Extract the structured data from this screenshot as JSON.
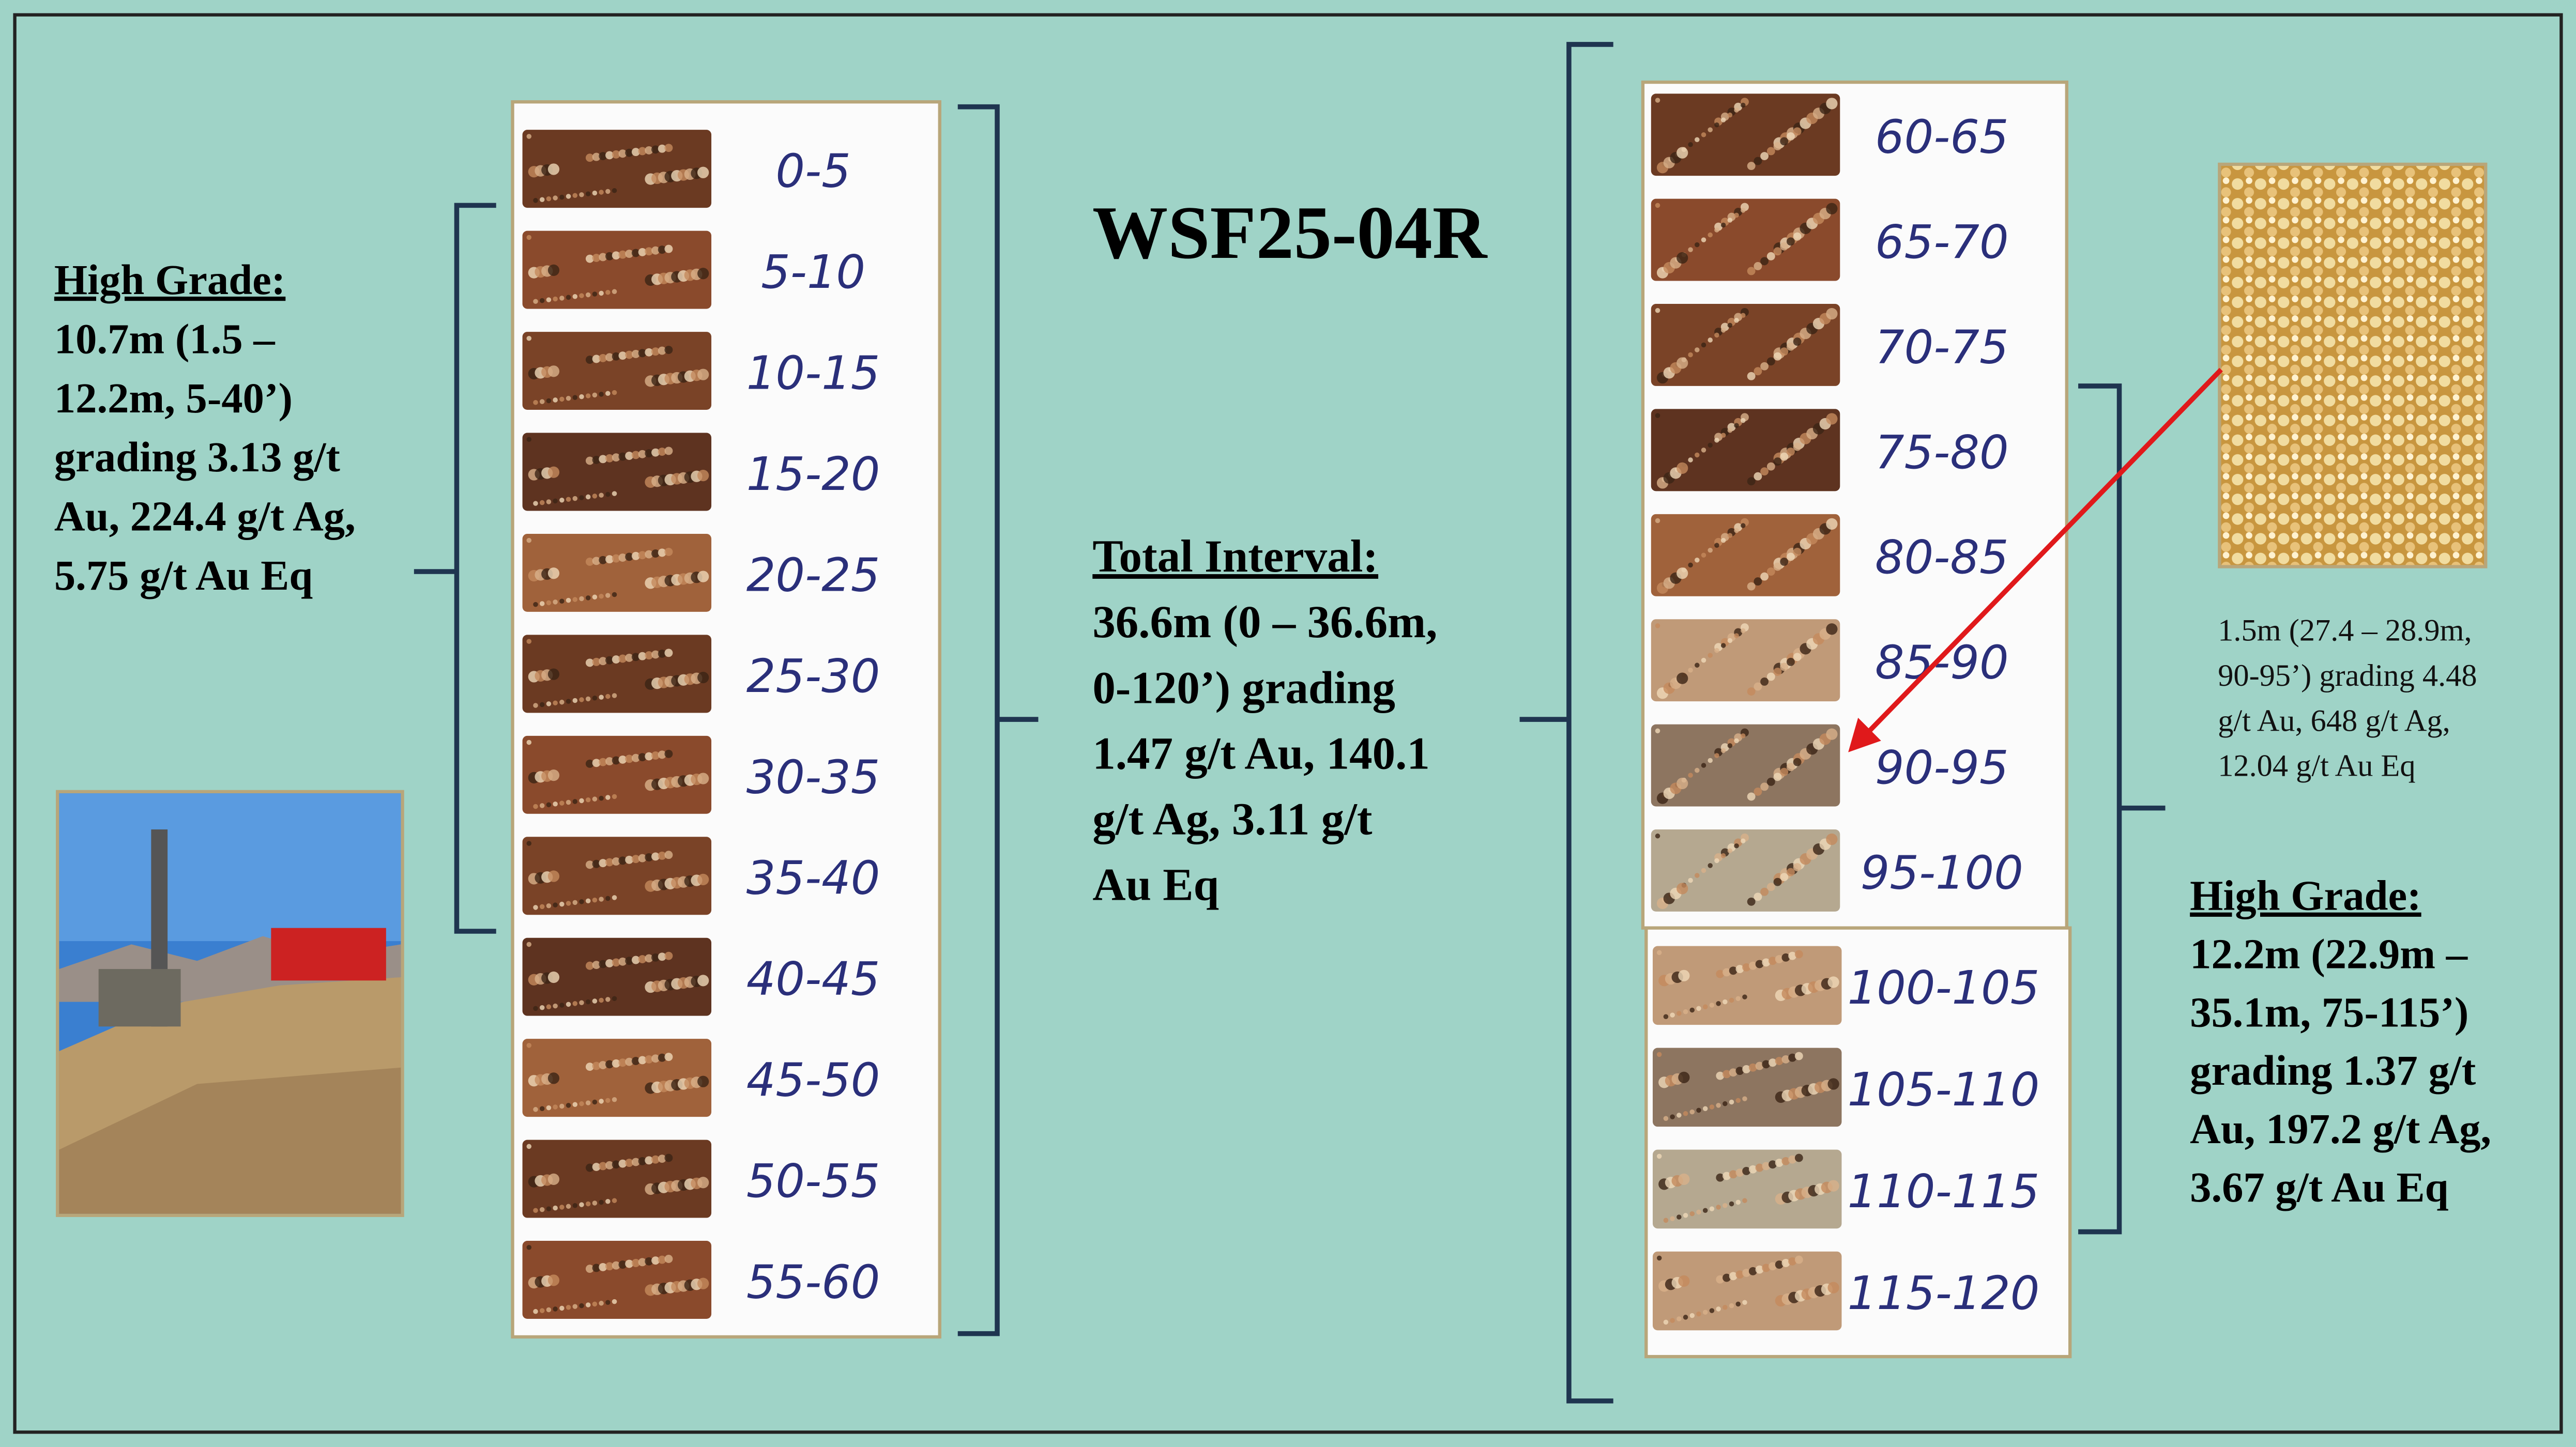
{
  "title": "WSF25-04R",
  "left_callout": {
    "heading": "High Grade:",
    "lines": [
      "10.7m (1.5 –",
      "12.2m, 5-40’)",
      "grading 3.13 g/t",
      "Au, 224.4 g/t Ag,",
      "5.75 g/t Au Eq"
    ]
  },
  "center_callout": {
    "heading": "Total Interval:",
    "lines": [
      "36.6m (0 – 36.6m,",
      "0-120’) grading",
      "1.47 g/t Au, 140.1",
      "g/t Ag, 3.11 g/t",
      "Au Eq"
    ]
  },
  "right_callout": {
    "heading": "High Grade:",
    "lines": [
      "12.2m (22.9m –",
      "35.1m, 75-115’)",
      "grading 1.37 g/t",
      "Au, 197.2 g/t Ag,",
      "3.67 g/t Au Eq"
    ]
  },
  "detail_note": {
    "lines": [
      "1.5m (27.4 – 28.9m,",
      "90-95’) grading 4.48",
      "g/t Au, 648 g/t Ag,",
      "12.04 g/t Au Eq"
    ]
  },
  "trays": [
    {
      "labels": [
        "0-5",
        "5-10",
        "10-15",
        "15-20",
        "20-25",
        "25-30",
        "30-35",
        "35-40",
        "40-45",
        "45-50",
        "50-55",
        "55-60"
      ]
    },
    {
      "labels": [
        "60-65",
        "65-70",
        "70-75",
        "75-80",
        "80-85",
        "85-90",
        "90-95",
        "95-100"
      ]
    },
    {
      "labels": [
        "100-105",
        "105-110",
        "110-115",
        "115-120"
      ]
    }
  ]
}
